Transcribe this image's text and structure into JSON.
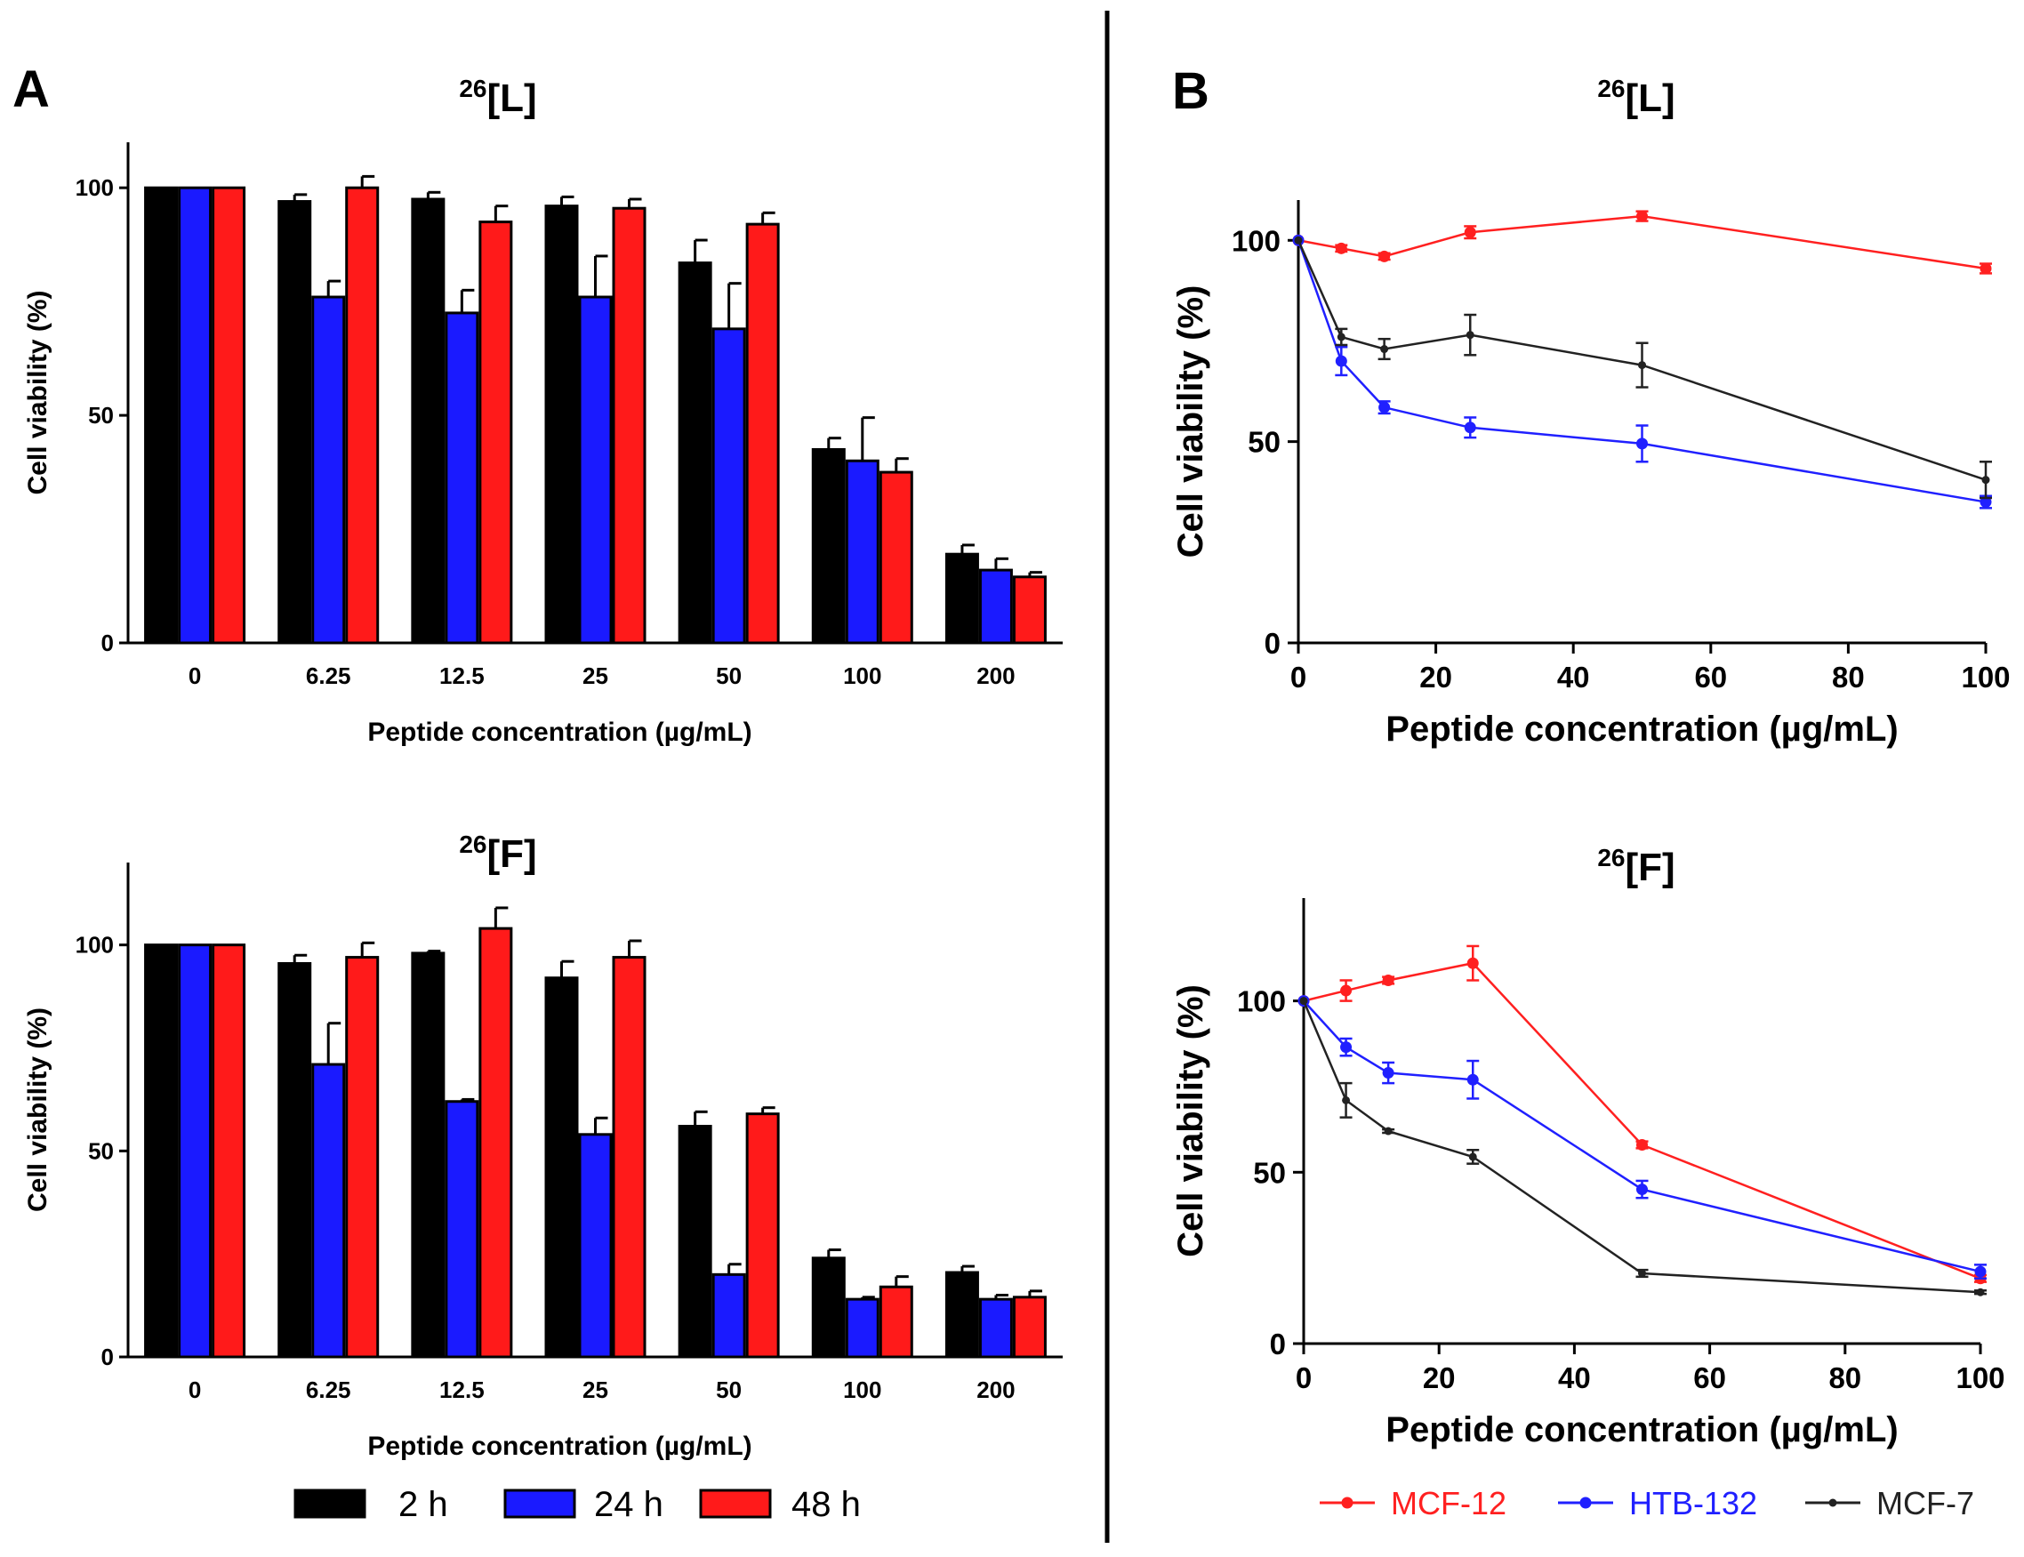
{
  "panel_labels": {
    "a": "A",
    "b": "B"
  },
  "legend_a": [
    {
      "label": "2 h",
      "color": "#000000"
    },
    {
      "label": "24 h",
      "color": "#1a1aff"
    },
    {
      "label": "48 h",
      "color": "#ff1a1a"
    }
  ],
  "legend_b": [
    {
      "label": "MCF-12",
      "color": "#ff2020"
    },
    {
      "label": "HTB-132",
      "color": "#2020ff"
    },
    {
      "label": "MCF-7",
      "color": "#222222"
    }
  ],
  "chart_data": [
    {
      "id": "A-L",
      "type": "bar",
      "title_sup": "26",
      "title_main": "[L]",
      "xlabel": "Peptide concentration (µg/mL)",
      "ylabel": "Cell viability (%)",
      "ylim": [
        0,
        110
      ],
      "yticks": [
        0,
        50,
        100
      ],
      "categories": [
        "0",
        "6.25",
        "12.5",
        "25",
        "50",
        "100",
        "200"
      ],
      "series": [
        {
          "name": "2 h",
          "values": [
            100,
            97,
            97.5,
            96,
            83.5,
            42.5,
            19.5
          ],
          "errors": [
            0,
            1.5,
            1.5,
            2,
            5,
            2.5,
            2
          ]
        },
        {
          "name": "24 h",
          "values": [
            100,
            76,
            72.5,
            76,
            69,
            40,
            16
          ],
          "errors": [
            0,
            3.5,
            5,
            9,
            10,
            9.5,
            2.5
          ]
        },
        {
          "name": "48 h",
          "values": [
            100,
            100,
            92.5,
            95.5,
            92,
            37.5,
            14.5
          ],
          "errors": [
            0,
            2.5,
            3.5,
            2,
            2.5,
            3,
            1
          ]
        }
      ]
    },
    {
      "id": "A-F",
      "type": "bar",
      "title_sup": "26",
      "title_main": "[F]",
      "xlabel": "Peptide concentration (µg/mL)",
      "ylabel": "Cell viability (%)",
      "ylim": [
        0,
        120
      ],
      "yticks": [
        0,
        50,
        100
      ],
      "categories": [
        "0",
        "6.25",
        "12.5",
        "25",
        "50",
        "100",
        "200"
      ],
      "series": [
        {
          "name": "2 h",
          "values": [
            100,
            95.5,
            98,
            92,
            56,
            24,
            20.5
          ],
          "errors": [
            0,
            2,
            0.5,
            4,
            3.5,
            2,
            1.5
          ]
        },
        {
          "name": "24 h",
          "values": [
            100,
            71,
            62,
            54,
            20,
            14,
            14
          ],
          "errors": [
            0,
            10,
            0.5,
            4,
            2.5,
            0.5,
            1
          ]
        },
        {
          "name": "48 h",
          "values": [
            100,
            97,
            104,
            97,
            59,
            17,
            14.5
          ],
          "errors": [
            0,
            3.5,
            5,
            4,
            1.5,
            2.5,
            1.5
          ]
        }
      ]
    },
    {
      "id": "B-L",
      "type": "line",
      "title_sup": "26",
      "title_main": "[L]",
      "xlabel": "Peptide concentration (µg/mL)",
      "ylabel": "Cell viability (%)",
      "xlim": [
        0,
        100
      ],
      "ylim": [
        0,
        110
      ],
      "xticks": [
        0,
        20,
        40,
        60,
        80,
        100
      ],
      "yticks": [
        0,
        50,
        100
      ],
      "x": [
        0,
        6.25,
        12.5,
        25,
        50,
        100
      ],
      "series": [
        {
          "name": "MCF-12",
          "values": [
            100,
            98,
            96,
            102,
            106,
            93
          ],
          "errors": [
            0,
            0.8,
            0.8,
            1.5,
            1.2,
            1.2
          ]
        },
        {
          "name": "HTB-132",
          "values": [
            100,
            70,
            58.5,
            53.5,
            49.5,
            35
          ],
          "errors": [
            0,
            3.5,
            1.5,
            2.5,
            4.5,
            1.5
          ]
        },
        {
          "name": "MCF-7",
          "values": [
            100,
            76,
            73,
            76.5,
            69,
            40.5
          ],
          "errors": [
            0,
            2,
            2.5,
            5,
            5.5,
            4.5
          ]
        }
      ]
    },
    {
      "id": "B-F",
      "type": "line",
      "title_sup": "26",
      "title_main": "[F]",
      "xlabel": "Peptide concentration (µg/mL)",
      "ylabel": "Cell viability (%)",
      "xlim": [
        0,
        100
      ],
      "ylim": [
        0,
        130
      ],
      "xticks": [
        0,
        20,
        40,
        60,
        80,
        100
      ],
      "yticks": [
        0,
        50,
        100
      ],
      "x": [
        0,
        6.25,
        12.5,
        25,
        50,
        100
      ],
      "series": [
        {
          "name": "MCF-12",
          "values": [
            100,
            103,
            106,
            111,
            58,
            19
          ],
          "errors": [
            0,
            3,
            1,
            5,
            1,
            1
          ]
        },
        {
          "name": "HTB-132",
          "values": [
            100,
            86.5,
            79,
            77,
            45,
            21
          ],
          "errors": [
            0,
            2.5,
            3,
            5.5,
            2.5,
            2
          ]
        },
        {
          "name": "MCF-7",
          "values": [
            100,
            71,
            62,
            54.5,
            20.5,
            15
          ],
          "errors": [
            0,
            5,
            0.5,
            2,
            1,
            0.5
          ]
        }
      ]
    }
  ]
}
